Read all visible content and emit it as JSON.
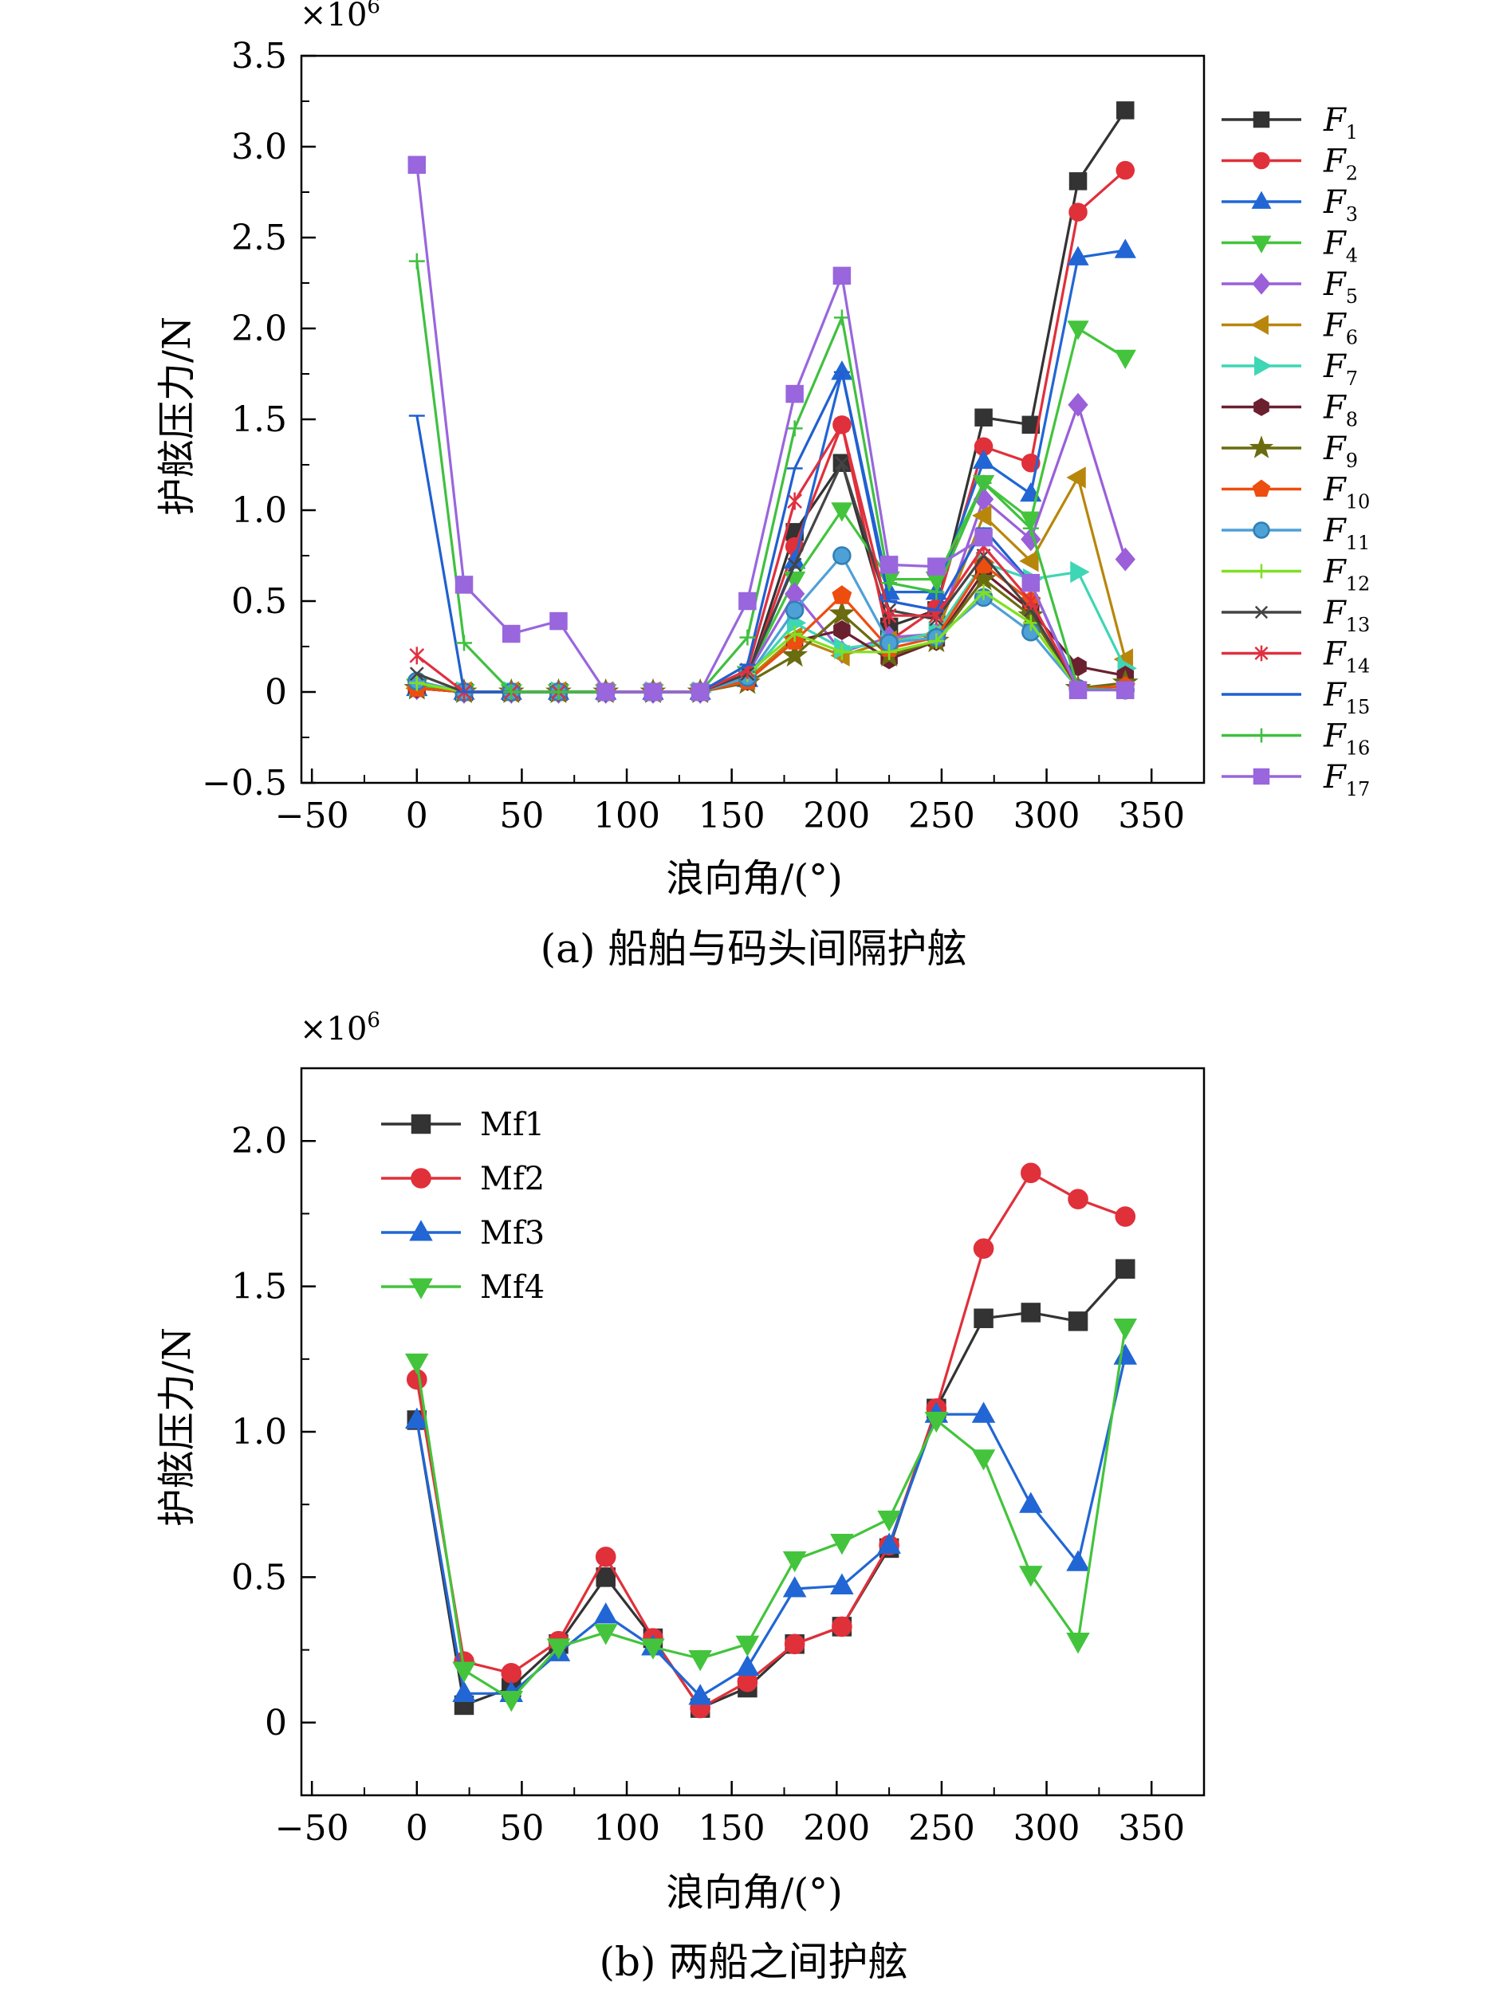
{
  "chart_data": [
    {
      "type": "line",
      "caption": "(a) 船舶与码头间隔护舷",
      "xlabel": "浪向角/(°)",
      "ylabel": "护舷压力/N",
      "multiplier_base": "×10",
      "multiplier_exp": "6",
      "xlim": [
        -55,
        375
      ],
      "ylim": [
        -0.5,
        3.5
      ],
      "xticks": [
        -50,
        0,
        50,
        100,
        150,
        200,
        250,
        300,
        350
      ],
      "xtick_labels": [
        "−50",
        "0",
        "50",
        "100",
        "150",
        "200",
        "250",
        "300",
        "350"
      ],
      "yticks": [
        -0.5,
        0,
        0.5,
        1.0,
        1.5,
        2.0,
        2.5,
        3.0,
        3.5
      ],
      "ytick_labels": [
        "−0.5",
        "0",
        "0.5",
        "1.0",
        "1.5",
        "2.0",
        "2.5",
        "3.0",
        "3.5"
      ],
      "x": [
        0,
        22.5,
        45,
        67.5,
        90,
        112.5,
        135,
        157.5,
        180,
        202.5,
        225,
        247.5,
        270,
        292.5,
        315,
        337.5
      ],
      "legend_position": "right",
      "series": [
        {
          "name": "F",
          "sub": "1",
          "color": "#333333",
          "marker": "square",
          "values": [
            0.03,
            0,
            0,
            0,
            0,
            0,
            0,
            0.08,
            0.88,
            1.26,
            0.36,
            0.45,
            1.51,
            1.47,
            2.81,
            3.2
          ]
        },
        {
          "name": "F",
          "sub": "2",
          "color": "#e0303a",
          "marker": "circle",
          "values": [
            0.02,
            0,
            0,
            0,
            0,
            0,
            0,
            0.07,
            0.8,
            1.47,
            0.28,
            0.46,
            1.35,
            1.26,
            2.64,
            2.87
          ]
        },
        {
          "name": "F",
          "sub": "3",
          "color": "#2166d4",
          "marker": "triangle-up",
          "values": [
            0.02,
            0,
            0,
            0,
            0,
            0,
            0,
            0.07,
            0.72,
            1.76,
            0.55,
            0.55,
            1.27,
            1.09,
            2.39,
            2.43
          ]
        },
        {
          "name": "F",
          "sub": "4",
          "color": "#43c43c",
          "marker": "triangle-down",
          "values": [
            0.03,
            0,
            0,
            0,
            0,
            0,
            0,
            0.1,
            0.62,
            1.0,
            0.62,
            0.62,
            1.15,
            0.95,
            2.0,
            1.84
          ]
        },
        {
          "name": "F",
          "sub": "5",
          "color": "#9a5fd9",
          "marker": "diamond",
          "values": [
            0.02,
            0,
            0,
            0,
            0,
            0,
            0,
            0.1,
            0.54,
            0.22,
            0.3,
            0.32,
            1.06,
            0.84,
            1.58,
            0.73
          ]
        },
        {
          "name": "F",
          "sub": "6",
          "color": "#b8860b",
          "marker": "triangle-left",
          "values": [
            0.02,
            0,
            0,
            0,
            0,
            0,
            0,
            0.07,
            0.3,
            0.2,
            0.28,
            0.32,
            0.97,
            0.72,
            1.18,
            0.18
          ]
        },
        {
          "name": "F",
          "sub": "7",
          "color": "#3ed6b4",
          "marker": "triangle-right",
          "values": [
            0.02,
            0,
            0,
            0,
            0,
            0,
            0,
            0.08,
            0.38,
            0.24,
            0.27,
            0.33,
            0.71,
            0.62,
            0.66,
            0.13
          ]
        },
        {
          "name": "F",
          "sub": "8",
          "color": "#6b2030",
          "marker": "hexagon",
          "values": [
            0.02,
            0,
            0,
            0,
            0,
            0,
            0,
            0.06,
            0.28,
            0.34,
            0.18,
            0.28,
            0.66,
            0.45,
            0.14,
            0.09
          ]
        },
        {
          "name": "F",
          "sub": "9",
          "color": "#6b6b10",
          "marker": "star",
          "values": [
            0.02,
            0,
            0,
            0,
            0,
            0,
            0,
            0.05,
            0.2,
            0.43,
            0.2,
            0.28,
            0.62,
            0.42,
            0.02,
            0.05
          ]
        },
        {
          "name": "F",
          "sub": "10",
          "color": "#ee4d10",
          "marker": "pentagon",
          "values": [
            0.02,
            0,
            0,
            0,
            0,
            0,
            0,
            0.06,
            0.28,
            0.53,
            0.24,
            0.3,
            0.7,
            0.5,
            0.02,
            0.03
          ]
        },
        {
          "name": "F",
          "sub": "11",
          "color": "#4ea1d6",
          "marker": "sphere",
          "values": [
            0.06,
            0,
            0,
            0,
            0,
            0,
            0,
            0.08,
            0.45,
            0.75,
            0.27,
            0.3,
            0.52,
            0.33,
            0.02,
            0.01
          ]
        },
        {
          "name": "F",
          "sub": "12",
          "color": "#80e020",
          "marker": "plus",
          "values": [
            0.05,
            0,
            0,
            0,
            0,
            0,
            0,
            0.1,
            0.32,
            0.22,
            0.22,
            0.28,
            0.55,
            0.38,
            0.02,
            0.01
          ]
        },
        {
          "name": "F",
          "sub": "13",
          "color": "#444444",
          "marker": "x",
          "values": [
            0.1,
            0,
            0,
            0,
            0,
            0,
            0,
            0.1,
            0.7,
            1.26,
            0.45,
            0.4,
            0.75,
            0.45,
            0.02,
            0.01
          ]
        },
        {
          "name": "F",
          "sub": "14",
          "color": "#e03040",
          "marker": "asterisk",
          "values": [
            0.2,
            0,
            0,
            0,
            0,
            0,
            0,
            0.12,
            1.05,
            1.47,
            0.42,
            0.42,
            0.8,
            0.5,
            0.02,
            0.01
          ]
        },
        {
          "name": "F",
          "sub": "15",
          "color": "#2060d0",
          "marker": "hline",
          "values": [
            1.52,
            0,
            0,
            0,
            0,
            0,
            0,
            0.15,
            1.23,
            1.76,
            0.5,
            0.45,
            0.9,
            0.6,
            0.02,
            0.01
          ]
        },
        {
          "name": "F",
          "sub": "16",
          "color": "#40c040",
          "marker": "plus",
          "values": [
            2.37,
            0.27,
            0,
            0,
            0,
            0,
            0,
            0.3,
            1.45,
            2.06,
            0.6,
            0.55,
            1.15,
            0.9,
            0.02,
            0.01
          ]
        },
        {
          "name": "F",
          "sub": "17",
          "color": "#9966dd",
          "marker": "square",
          "values": [
            2.9,
            0.59,
            0.32,
            0.39,
            0,
            0,
            0,
            0.5,
            1.64,
            2.29,
            0.7,
            0.69,
            0.85,
            0.6,
            0.01,
            0.01
          ]
        }
      ]
    },
    {
      "type": "line",
      "caption": "(b) 两船之间护舷",
      "xlabel": "浪向角/(°)",
      "ylabel": "护舷压力/N",
      "multiplier_base": "×10",
      "multiplier_exp": "6",
      "xlim": [
        -55,
        375
      ],
      "ylim": [
        -0.25,
        2.25
      ],
      "xticks": [
        -50,
        0,
        50,
        100,
        150,
        200,
        250,
        300,
        350
      ],
      "xtick_labels": [
        "−50",
        "0",
        "50",
        "100",
        "150",
        "200",
        "250",
        "300",
        "350"
      ],
      "yticks": [
        0,
        0.5,
        1.0,
        1.5,
        2.0
      ],
      "ytick_labels": [
        "0",
        "0.5",
        "1.0",
        "1.5",
        "2.0"
      ],
      "x": [
        0,
        22.5,
        45,
        67.5,
        90,
        112.5,
        135,
        157.5,
        180,
        202.5,
        225,
        247.5,
        270,
        292.5,
        315,
        337.5
      ],
      "legend_position": "top-left",
      "series": [
        {
          "name": "Mf1",
          "color": "#333333",
          "marker": "square",
          "values": [
            1.04,
            0.06,
            0.12,
            0.27,
            0.5,
            0.29,
            0.05,
            0.12,
            0.27,
            0.33,
            0.6,
            1.08,
            1.39,
            1.41,
            1.38,
            1.56
          ]
        },
        {
          "name": "Mf2",
          "color": "#e0303a",
          "marker": "circle",
          "values": [
            1.18,
            0.21,
            0.17,
            0.28,
            0.57,
            0.29,
            0.05,
            0.14,
            0.27,
            0.33,
            0.61,
            1.08,
            1.63,
            1.89,
            1.8,
            1.74
          ]
        },
        {
          "name": "Mf3",
          "color": "#2166d4",
          "marker": "triangle-up",
          "values": [
            1.04,
            0.1,
            0.1,
            0.24,
            0.37,
            0.26,
            0.09,
            0.19,
            0.46,
            0.47,
            0.61,
            1.06,
            1.06,
            0.75,
            0.55,
            1.26
          ]
        },
        {
          "name": "Mf4",
          "color": "#43c43c",
          "marker": "triangle-down",
          "values": [
            1.24,
            0.18,
            0.08,
            0.26,
            0.31,
            0.26,
            0.22,
            0.27,
            0.56,
            0.62,
            0.7,
            1.04,
            0.91,
            0.51,
            0.28,
            1.36
          ]
        }
      ]
    }
  ]
}
